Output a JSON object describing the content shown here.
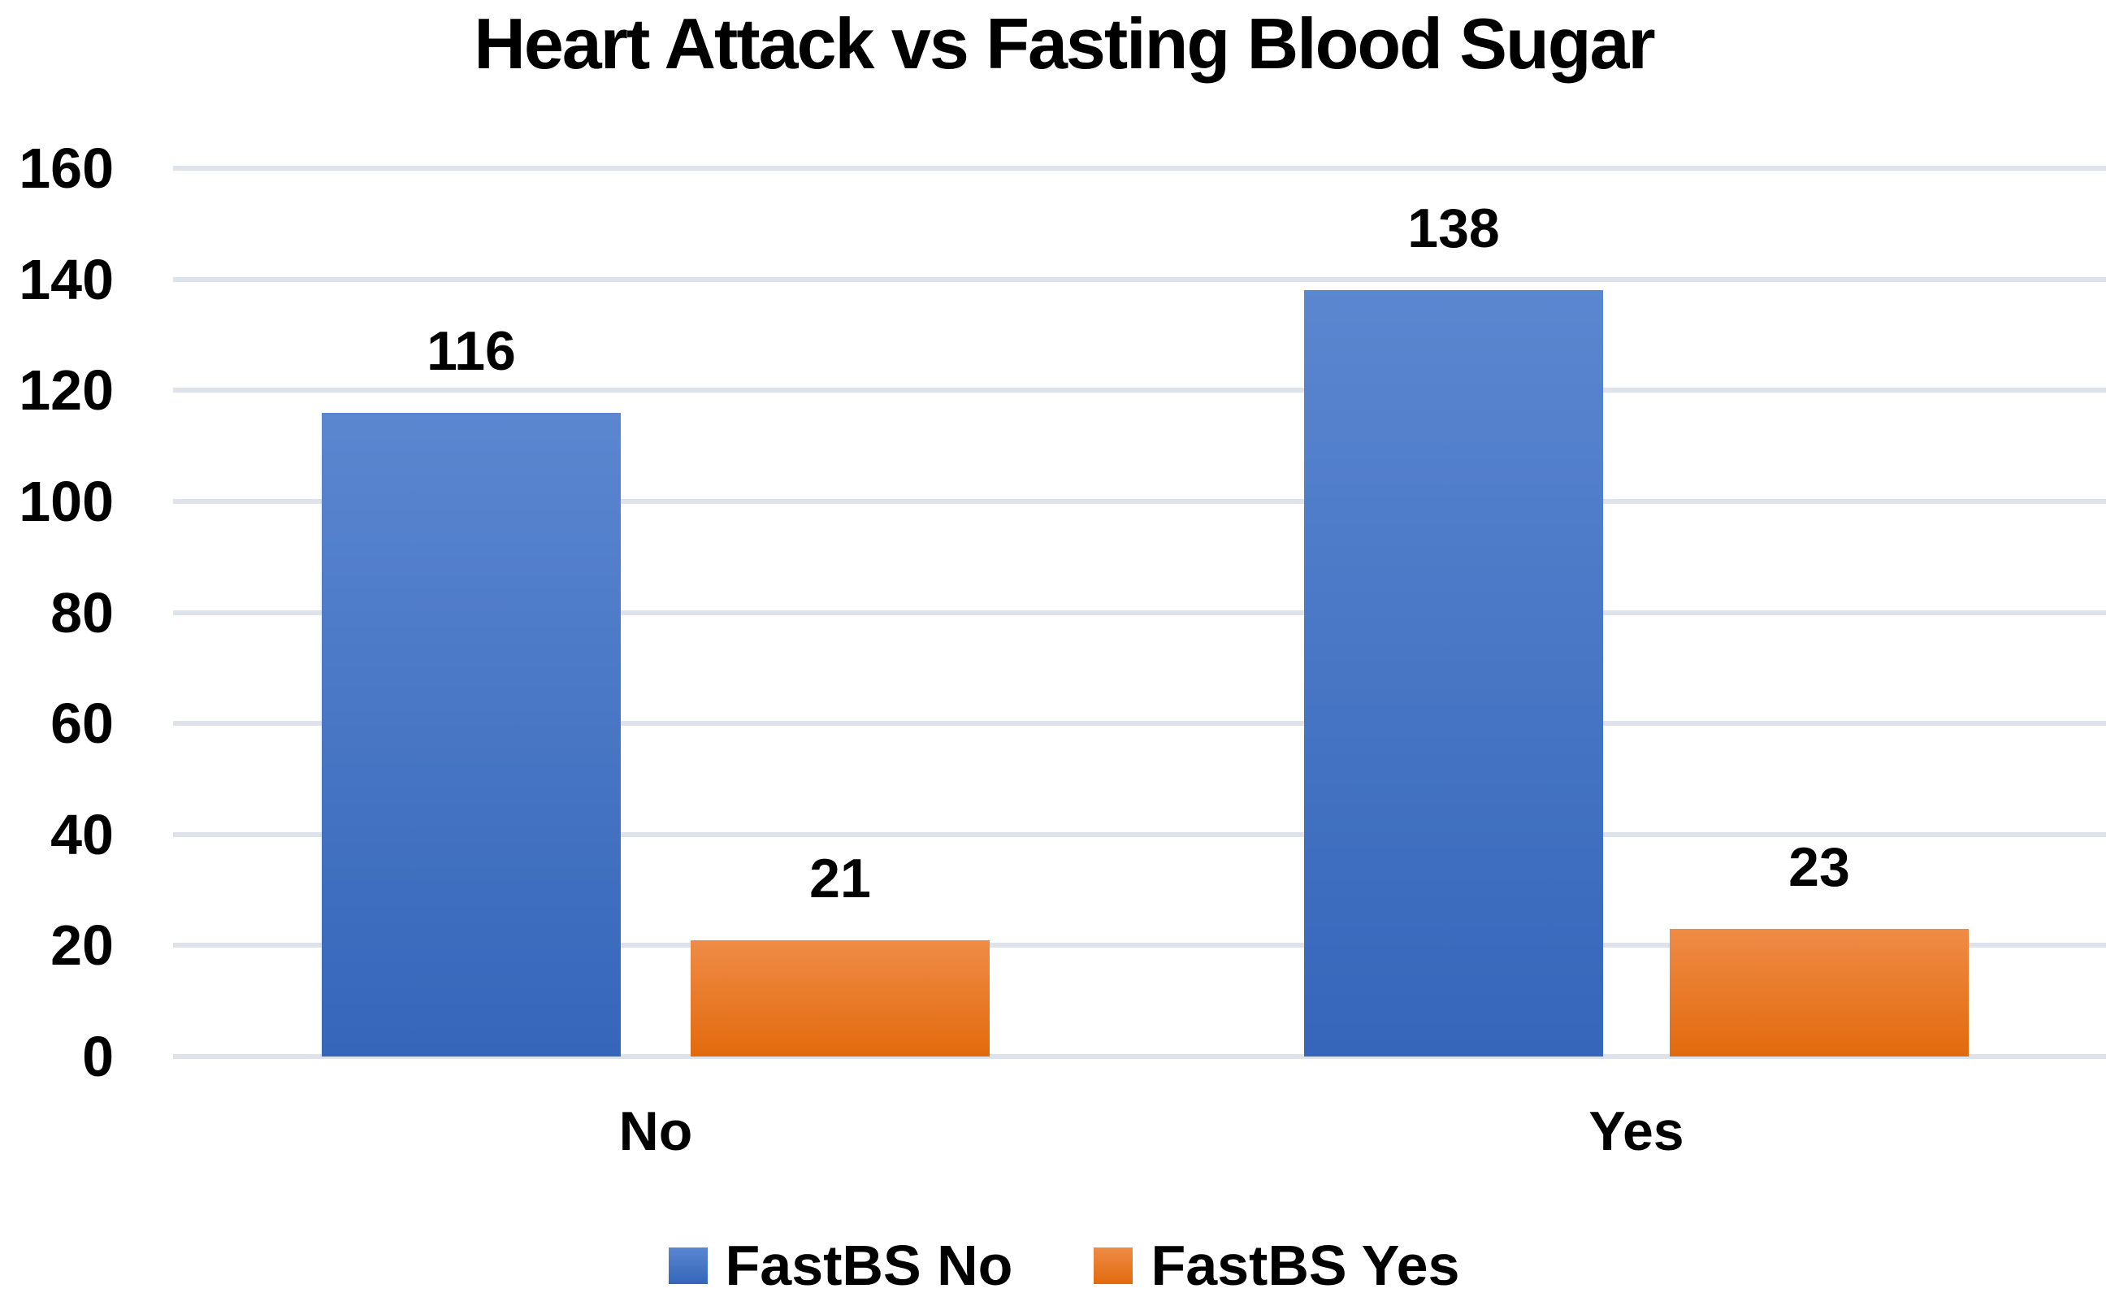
{
  "chart_data": {
    "type": "bar",
    "title": "Heart Attack vs Fasting Blood Sugar",
    "categories": [
      "No",
      "Yes"
    ],
    "series": [
      {
        "name": "FastBS No",
        "values": [
          116,
          138
        ],
        "color": "#4472C4",
        "color_top": "#5B86D0",
        "color_bottom": "#3566BA"
      },
      {
        "name": "FastBS Yes",
        "values": [
          21,
          23
        ],
        "color": "#ED7D31",
        "color_top": "#EF8B46",
        "color_bottom": "#E26A0D"
      }
    ],
    "xlabel": "",
    "ylabel": "",
    "ylim": [
      0,
      160
    ],
    "yticks": [
      0,
      20,
      40,
      60,
      80,
      100,
      120,
      140,
      160
    ],
    "grid": "horizontal",
    "gridline_color": "#DDE2EB",
    "legend_position": "bottom",
    "data_labels_shown": true,
    "text_color": "#000000",
    "background_color": "#FFFFFF"
  }
}
